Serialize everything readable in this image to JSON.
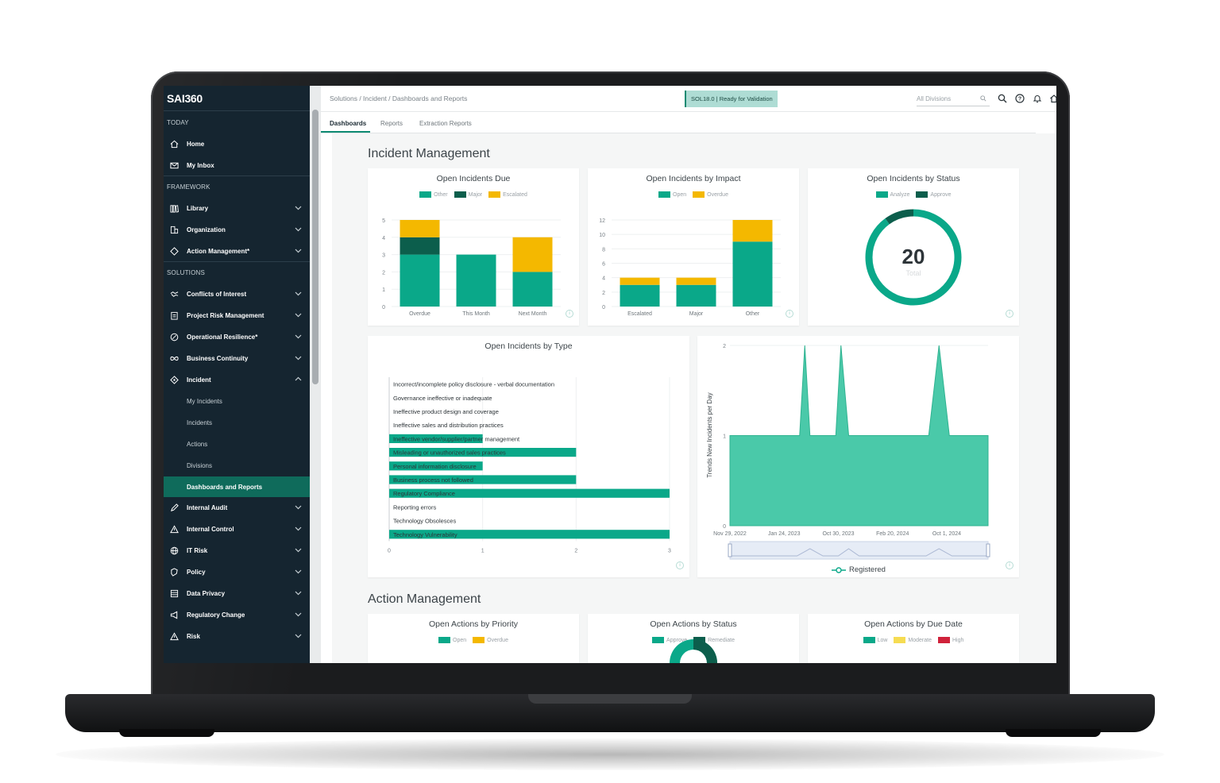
{
  "app": {
    "logo": "SAI360"
  },
  "colors": {
    "green": "#0aa889",
    "dark_green": "#0c5e4c",
    "yellow": "#f4b800",
    "teal_area": "#4ac9a9",
    "red": "#d0223b",
    "light_yellow": "#f6dc52",
    "sidebar_bg": "#152530",
    "active_item": "#0f6b5b"
  },
  "sidebar": {
    "sections": {
      "today": "TODAY",
      "framework": "FRAMEWORK",
      "solutions": "SOLUTIONS"
    },
    "today_items": [
      {
        "label": "Home",
        "icon": "home-icon"
      },
      {
        "label": "My Inbox",
        "icon": "inbox-icon"
      }
    ],
    "framework_items": [
      {
        "label": "Library",
        "icon": "library-icon"
      },
      {
        "label": "Organization",
        "icon": "organization-icon"
      },
      {
        "label": "Action Management*",
        "icon": "diamond-icon"
      }
    ],
    "solution_items": [
      {
        "label": "Conflicts of Interest",
        "icon": "handshake-icon"
      },
      {
        "label": "Project Risk Management",
        "icon": "clipboard-icon"
      },
      {
        "label": "Operational Resilience*",
        "icon": "resilience-icon"
      },
      {
        "label": "Business Continuity",
        "icon": "infinity-icon"
      },
      {
        "label": "Incident",
        "icon": "incident-icon"
      }
    ],
    "incident_sub": [
      "My Incidents",
      "Incidents",
      "Actions",
      "Divisions",
      "Dashboards and Reports"
    ],
    "more_items": [
      {
        "label": "Internal Audit",
        "icon": "pen-icon"
      },
      {
        "label": "Internal Control",
        "icon": "warning-icon"
      },
      {
        "label": "IT Risk",
        "icon": "globe-icon"
      },
      {
        "label": "Policy",
        "icon": "policy-icon"
      },
      {
        "label": "Data Privacy",
        "icon": "data-privacy-icon"
      },
      {
        "label": "Regulatory Change",
        "icon": "megaphone-icon"
      },
      {
        "label": "Risk",
        "icon": "risk-icon"
      }
    ]
  },
  "topbar": {
    "breadcrumb": "Solutions / Incident / Dashboards and Reports",
    "release": "SOL18.0 | Ready for Validation",
    "division_placeholder": "All Divisions"
  },
  "tabs": [
    "Dashboards",
    "Reports",
    "Extraction Reports"
  ],
  "sections": {
    "incident": "Incident Management",
    "action": "Action Management"
  },
  "cards": {
    "due": {
      "title": "Open Incidents Due",
      "legend": [
        "Other",
        "Major",
        "Escalated"
      ]
    },
    "impact": {
      "title": "Open Incidents by Impact",
      "legend": [
        "Open",
        "Overdue"
      ]
    },
    "status": {
      "title": "Open Incidents by Status",
      "legend": [
        "Analyze",
        "Approve"
      ],
      "total_value": "20",
      "total_label": "Total"
    },
    "type": {
      "title": "Open Incidents by Type"
    },
    "trend": {
      "ylabel": "Trends New Incidents per Day",
      "legend": "Registered"
    },
    "priority": {
      "title": "Open Actions by Priority",
      "legend": [
        "Open",
        "Overdue"
      ]
    },
    "action_status": {
      "title": "Open Actions by Status",
      "legend": [
        "Approve",
        "Remediate"
      ]
    },
    "due_date": {
      "title": "Open Actions by Due Date",
      "legend": [
        "Low",
        "Moderate",
        "High"
      ]
    }
  },
  "chart_data": [
    {
      "type": "bar",
      "title": "Open Incidents Due",
      "categories": [
        "Overdue",
        "This Month",
        "Next Month"
      ],
      "series": [
        {
          "name": "Other",
          "values": [
            3,
            3,
            2
          ]
        },
        {
          "name": "Major",
          "values": [
            1,
            0,
            0
          ]
        },
        {
          "name": "Escalated",
          "values": [
            1,
            0,
            2
          ]
        }
      ],
      "ylim": [
        0,
        5
      ],
      "yticks": [
        0,
        1,
        2,
        3,
        4,
        5
      ]
    },
    {
      "type": "bar",
      "title": "Open Incidents by Impact",
      "categories": [
        "Escalated",
        "Major",
        "Other"
      ],
      "series": [
        {
          "name": "Open",
          "values": [
            3,
            3,
            9
          ]
        },
        {
          "name": "Overdue",
          "values": [
            1,
            1,
            3
          ]
        }
      ],
      "ylim": [
        0,
        12
      ],
      "yticks": [
        0,
        2,
        4,
        6,
        8,
        10,
        12
      ]
    },
    {
      "type": "pie",
      "title": "Open Incidents by Status",
      "series": [
        {
          "name": "Analyze",
          "value": 18
        },
        {
          "name": "Approve",
          "value": 2
        }
      ]
    },
    {
      "type": "bar",
      "title": "Open Incidents by Type",
      "orientation": "horizontal",
      "categories": [
        "Incorrect/incomplete policy disclosure - verbal documentation",
        "Governance ineffective or inadequate",
        "Ineffective product design and coverage",
        "Ineffective sales and distribution practices",
        "Ineffective vendor/supplier/partner management",
        "Misleading or unauthorized sales practices",
        "Personal information disclosure",
        "Business process not followed",
        "Regulatory Compliance",
        "Reporting errors",
        "Technology Obsolesces",
        "Technology Vulnerability"
      ],
      "values": [
        0,
        0,
        0,
        0,
        1,
        2,
        1,
        2,
        3,
        0,
        0,
        3
      ],
      "xlim": [
        0,
        3
      ],
      "xticks": [
        0,
        1,
        2,
        3
      ]
    },
    {
      "type": "area",
      "series": [
        {
          "name": "Registered"
        }
      ],
      "ylabel": "Trends New Incidents per Day",
      "x": [
        "Nov 29, 2022",
        "Jan 24, 2023",
        "Oct 30, 2023",
        "Feb 20, 2024",
        "Oct 1, 2024"
      ],
      "ylim": [
        0,
        2
      ],
      "yticks": [
        0,
        1,
        2
      ],
      "points": [
        [
          0,
          1
        ],
        [
          0.27,
          1
        ],
        [
          0.29,
          2
        ],
        [
          0.31,
          1
        ],
        [
          0.41,
          1
        ],
        [
          0.43,
          2
        ],
        [
          0.46,
          1
        ],
        [
          0.77,
          1
        ],
        [
          0.81,
          2
        ],
        [
          0.85,
          1
        ],
        [
          1,
          1
        ]
      ]
    }
  ]
}
